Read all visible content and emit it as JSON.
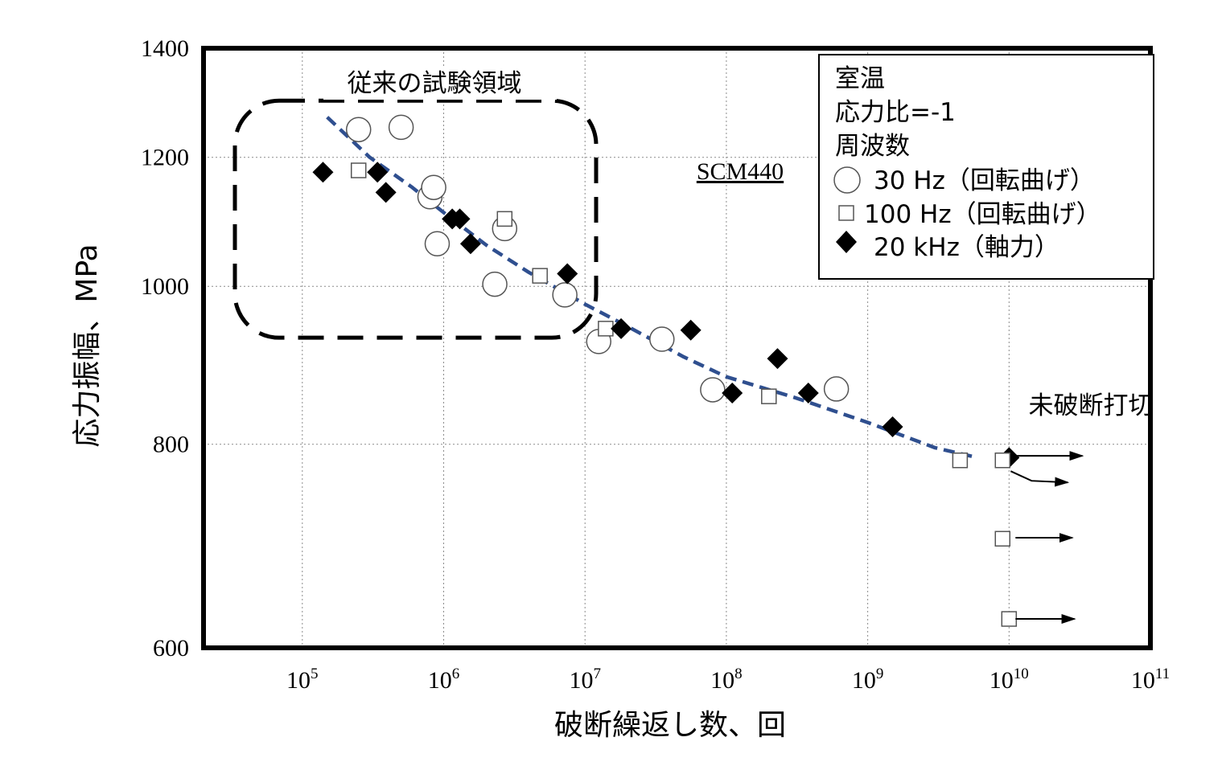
{
  "chart_data": {
    "type": "scatter",
    "title": "",
    "xlabel": "破断繰返し数、回",
    "ylabel": "応力振幅、MPa",
    "x_scale": "log",
    "y_scale": "log",
    "xlim": [
      20000,
      100000000000
    ],
    "ylim": [
      600,
      1400
    ],
    "grid": true,
    "y_ticks": [
      {
        "value": 600,
        "label": "600"
      },
      {
        "value": 800,
        "label": "800"
      },
      {
        "value": 1000,
        "label": "1000"
      },
      {
        "value": 1200,
        "label": "1200"
      },
      {
        "value": 1400,
        "label": "1400"
      }
    ],
    "x_ticks": [
      {
        "value": 100000,
        "base": "10",
        "exp": "5"
      },
      {
        "value": 1000000,
        "base": "10",
        "exp": "6"
      },
      {
        "value": 10000000,
        "base": "10",
        "exp": "7"
      },
      {
        "value": 100000000,
        "base": "10",
        "exp": "8"
      },
      {
        "value": 1000000000,
        "base": "10",
        "exp": "9"
      },
      {
        "value": 10000000000,
        "base": "10",
        "exp": "10"
      },
      {
        "value": 100000000000,
        "base": "10",
        "exp": "11"
      }
    ],
    "legend": {
      "placement": "top-right",
      "header": [
        "室温",
        "応力比=-1",
        "周波数"
      ],
      "entries": [
        {
          "marker": "circle",
          "label": "30 Hz（回転曲げ）"
        },
        {
          "marker": "square",
          "label": "100 Hz（回転曲げ）"
        },
        {
          "marker": "diamond",
          "label": "20 kHz（軸力）"
        }
      ]
    },
    "annotations": {
      "material": "SCM440",
      "conventional_region": "従来の試験領域",
      "runout": "未破断打切"
    },
    "conventional_region": {
      "x": [
        20000,
        13000000
      ],
      "y": [
        930,
        1300
      ]
    },
    "series": [
      {
        "name": "30 Hz（回転曲げ）",
        "marker": "circle",
        "points": [
          [
            250000,
            1248
          ],
          [
            500000,
            1252
          ],
          [
            800000,
            1135
          ],
          [
            850000,
            1150
          ],
          [
            900000,
            1062
          ],
          [
            2300000,
            1003
          ],
          [
            2700000,
            1085
          ],
          [
            7200000,
            988
          ],
          [
            12500000,
            925
          ],
          [
            35000000,
            928
          ],
          [
            80000000,
            864
          ],
          [
            600000000,
            865
          ]
        ]
      },
      {
        "name": "100 Hz（回転曲げ）",
        "marker": "square",
        "points": [
          [
            250000,
            1178
          ],
          [
            2700000,
            1100
          ],
          [
            4800000,
            1015
          ],
          [
            14000000,
            942
          ],
          [
            200000000,
            856
          ],
          [
            4500000000,
            782
          ]
        ]
      },
      {
        "name": "20 kHz（軸力）",
        "marker": "diamond",
        "points": [
          [
            140000,
            1175
          ],
          [
            340000,
            1175
          ],
          [
            390000,
            1142
          ],
          [
            1150000,
            1100
          ],
          [
            1300000,
            1100
          ],
          [
            1550000,
            1062
          ],
          [
            7500000,
            1018
          ],
          [
            18000000,
            942
          ],
          [
            56000000,
            940
          ],
          [
            110000000,
            860
          ],
          [
            230000000,
            903
          ],
          [
            380000000,
            860
          ],
          [
            1500000000,
            820
          ],
          [
            10000000000,
            785
          ]
        ]
      },
      {
        "name": "未破断打切 (100 Hz)",
        "marker": "square",
        "runout": true,
        "points": [
          [
            9000000000,
            782
          ],
          [
            9000000000,
            700
          ],
          [
            10000000000,
            625
          ]
        ]
      }
    ],
    "trend_line": {
      "style": "dashed",
      "color": "#2f4f8f",
      "points": [
        [
          150000,
          1270
        ],
        [
          300000,
          1200
        ],
        [
          600000,
          1150
        ],
        [
          1000000,
          1110
        ],
        [
          2000000,
          1060
        ],
        [
          4000000,
          1020
        ],
        [
          10000000,
          975
        ],
        [
          20000000,
          945
        ],
        [
          50000000,
          905
        ],
        [
          100000000,
          880
        ],
        [
          300000000,
          855
        ],
        [
          1000000000,
          825
        ],
        [
          3000000000,
          796
        ],
        [
          6000000000,
          785
        ]
      ]
    },
    "runout_arrows": [
      {
        "x_from": 10000000000,
        "x_to": 33000000000,
        "y": 787
      },
      {
        "x_from": 10000000000,
        "x_to": 26000000000,
        "y": 758,
        "bent": true
      },
      {
        "x_from": 10000000000,
        "x_to": 28000000000,
        "y": 701
      },
      {
        "x_from": 10000000000,
        "x_to": 29000000000,
        "y": 625
      }
    ],
    "colors": {
      "trend": "#2f4f8f",
      "axis": "#000000",
      "grid": "#8c8c8c"
    }
  }
}
